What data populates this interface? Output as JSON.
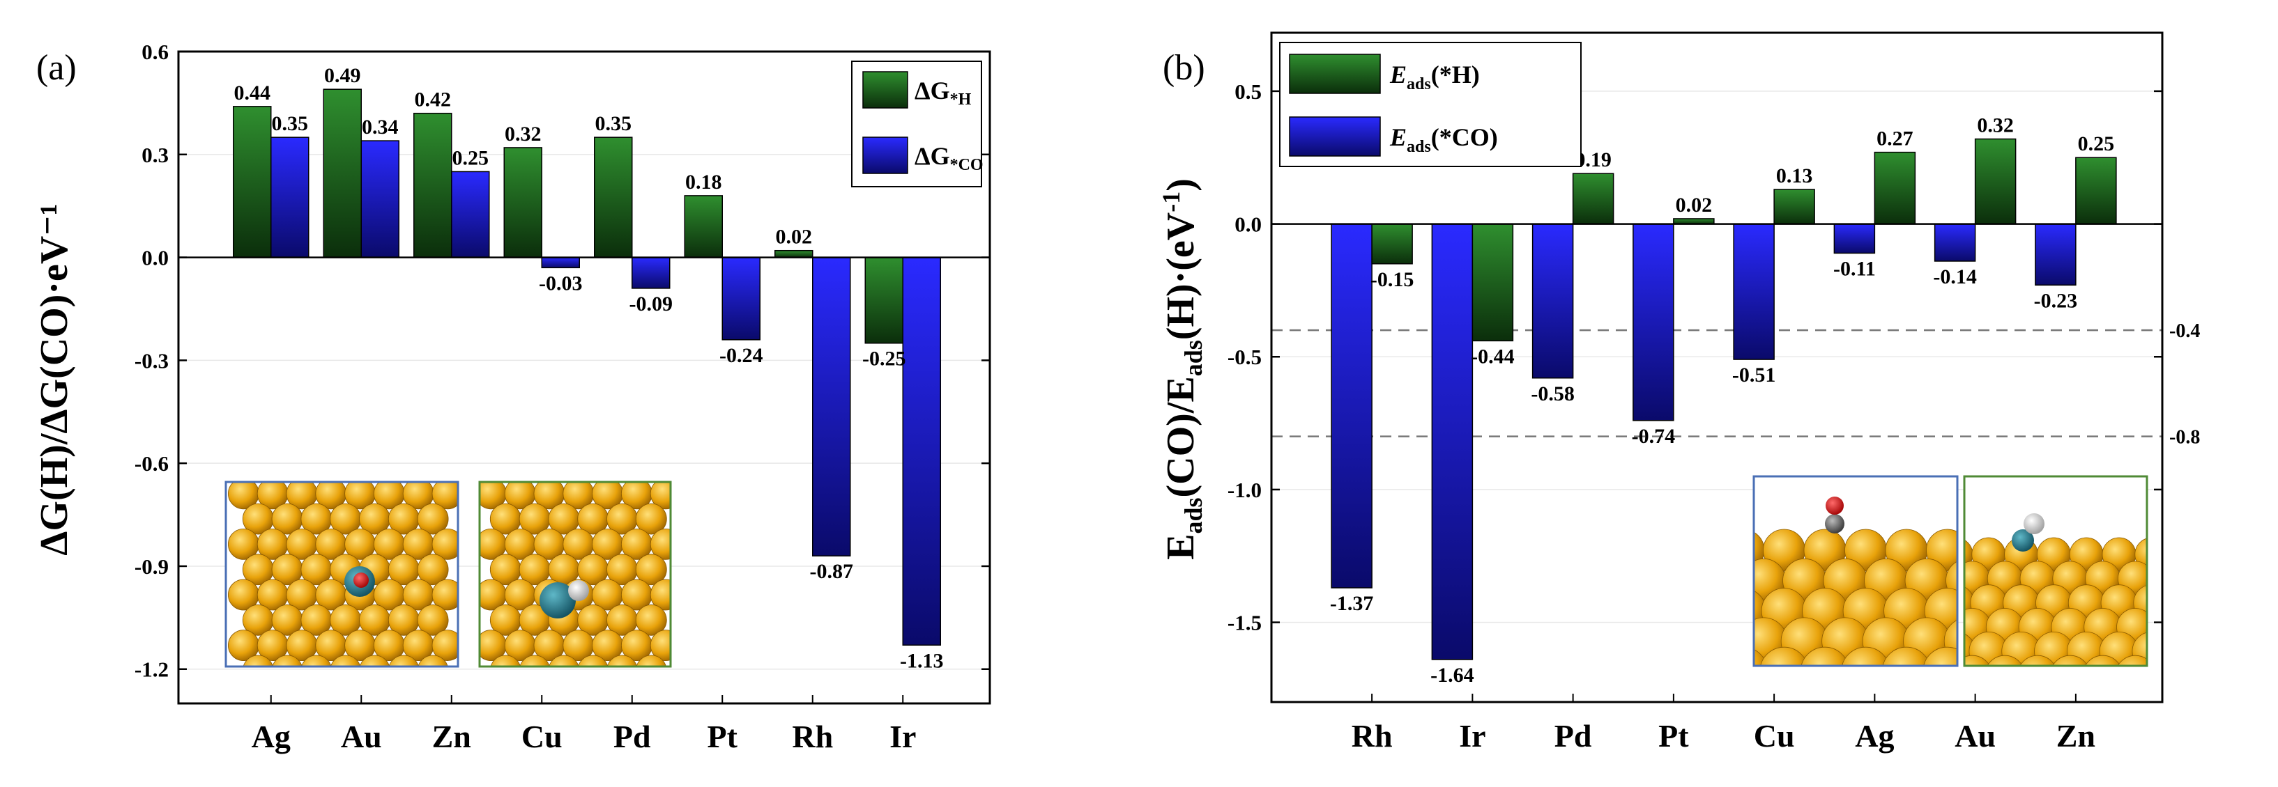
{
  "chart_data": [
    {
      "type": "bar",
      "panel_label": "(a)",
      "categories": [
        "Ag",
        "Au",
        "Zn",
        "Cu",
        "Pd",
        "Pt",
        "Rh",
        "Ir"
      ],
      "series": [
        {
          "name": "ΔG*H",
          "color": "#1e7a1e",
          "values": [
            0.44,
            0.49,
            0.42,
            0.32,
            0.35,
            0.18,
            0.02,
            -0.25
          ]
        },
        {
          "name": "ΔG*CO",
          "color": "#2222ee",
          "values": [
            0.35,
            0.34,
            0.25,
            -0.03,
            -0.09,
            -0.24,
            -0.87,
            -1.13
          ]
        }
      ],
      "data_labels": {
        "h": [
          "0.44",
          "0.49",
          "0.42",
          "0.32",
          "0.35",
          "0.18",
          "0.02",
          "-0.25"
        ],
        "co": [
          "0.35",
          "0.34",
          "0.25",
          "-0.03",
          "-0.09",
          "-0.24",
          "-0.87",
          "-1.13"
        ]
      },
      "ylabel": "ΔG(H)/ΔG(CO)·eV⁻¹",
      "ylim": [
        -1.3,
        0.6
      ],
      "yticks": [
        "0.6",
        "0.3",
        "0.0",
        "-0.3",
        "-0.6",
        "-0.9",
        "-1.2"
      ],
      "ytick_values": [
        0.6,
        0.3,
        0.0,
        -0.3,
        -0.6,
        -0.9,
        -1.2
      ],
      "legend": {
        "position": "top-right",
        "entries": [
          {
            "prefix": "ΔG",
            "sub": "*H"
          },
          {
            "prefix": "ΔG",
            "sub": "*CO"
          }
        ]
      },
      "insets": [
        {
          "name": "co-adsorption-top-view",
          "border": "#4a6fb5"
        },
        {
          "name": "h-adsorption-top-view",
          "border": "#4f8a35"
        }
      ]
    },
    {
      "type": "bar",
      "panel_label": "(b)",
      "categories": [
        "Rh",
        "Ir",
        "Pd",
        "Pt",
        "Cu",
        "Ag",
        "Au",
        "Zn"
      ],
      "series": [
        {
          "name": "Eads(*CO)",
          "color": "#2222ee",
          "values": [
            -1.37,
            -1.64,
            -0.58,
            -0.74,
            -0.51,
            -0.11,
            -0.14,
            -0.23
          ]
        },
        {
          "name": "Eads(*H)",
          "color": "#1e7a1e",
          "values": [
            -0.15,
            -0.44,
            0.19,
            0.02,
            0.13,
            0.27,
            0.32,
            0.25
          ]
        }
      ],
      "data_labels": {
        "co": [
          "-1.37",
          "-1.64",
          "-0.58",
          "-0.74",
          "-0.51",
          "-0.11",
          "-0.14",
          "-0.23"
        ],
        "h": [
          "-0.15",
          "-0.44",
          "0.19",
          "0.02",
          "0.13",
          "0.27",
          "0.32",
          "0.25"
        ]
      },
      "ylabel": {
        "prefix": "E",
        "sub": "ads",
        "middle": "(CO)/E",
        "sub2": "ads",
        "suffix": "(H)·(eV",
        "sup": "-1",
        "end": ")"
      },
      "ylim": [
        -1.8,
        0.72
      ],
      "yticks": [
        "0.5",
        "0.0",
        "-0.5",
        "-1.0",
        "-1.5"
      ],
      "ytick_values": [
        0.5,
        0.0,
        -0.5,
        -1.0,
        -1.5
      ],
      "reference_lines": [
        {
          "value": -0.4,
          "label": "-0.4"
        },
        {
          "value": -0.8,
          "label": "-0.8"
        }
      ],
      "legend": {
        "position": "top-left",
        "entries": [
          {
            "prefix": "E",
            "sub": "ads",
            "suffix": "(*H)"
          },
          {
            "prefix": "E",
            "sub": "ads",
            "suffix": "(*CO)"
          }
        ]
      },
      "insets": [
        {
          "name": "co-adsorption-side-view",
          "border": "#4a6fb5"
        },
        {
          "name": "h-adsorption-side-view",
          "border": "#4f8a35"
        }
      ]
    }
  ]
}
